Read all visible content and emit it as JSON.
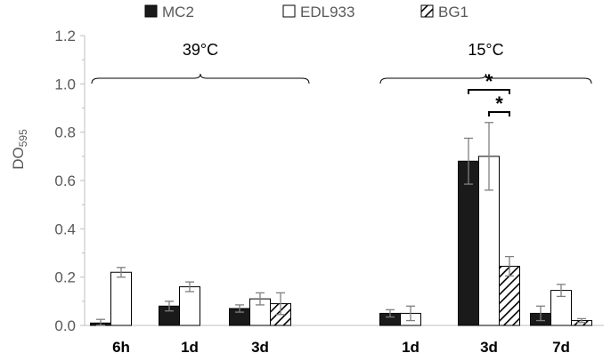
{
  "chart_data": {
    "type": "bar",
    "ylabel": "DO",
    "ylabel_sub": "595",
    "ylim": [
      0,
      1.2
    ],
    "yticks": [
      "0.0",
      "0.2",
      "0.4",
      "0.6",
      "0.8",
      "1.0",
      "1.2"
    ],
    "grid": false,
    "legend_placement": "top",
    "categories": [
      "6h",
      "1d",
      "3d",
      "1d",
      "3d",
      "7d"
    ],
    "groups": [
      {
        "label": "39°C",
        "categories": [
          "6h",
          "1d",
          "3d"
        ]
      },
      {
        "label": "15°C",
        "categories": [
          "1d",
          "3d",
          "7d"
        ]
      }
    ],
    "series": [
      {
        "name": "MC2",
        "style": "solid",
        "values": [
          0.01,
          0.08,
          0.07,
          0.05,
          0.68,
          0.05
        ],
        "errors": [
          0.015,
          0.02,
          0.015,
          0.015,
          0.095,
          0.03
        ]
      },
      {
        "name": "EDL933",
        "style": "open",
        "values": [
          0.22,
          0.16,
          0.11,
          0.05,
          0.7,
          0.145
        ],
        "errors": [
          0.02,
          0.02,
          0.025,
          0.03,
          0.14,
          0.025
        ]
      },
      {
        "name": "BG1",
        "style": "hatched",
        "values": [
          0.0,
          0.0,
          0.09,
          0.0,
          0.245,
          0.02
        ],
        "errors": [
          0,
          0,
          0.045,
          0,
          0.04,
          0.008
        ]
      }
    ],
    "significance": [
      {
        "label": "*",
        "between": [
          "MC2",
          "BG1"
        ],
        "category_index": 4
      },
      {
        "label": "*",
        "between": [
          "EDL933",
          "BG1"
        ],
        "category_index": 4
      }
    ],
    "colors": {
      "solid": "#1a1a1a",
      "open": "#ffffff",
      "stroke": "#000000",
      "axis": "#bfbfbf",
      "error": "#7f7f7f"
    }
  }
}
